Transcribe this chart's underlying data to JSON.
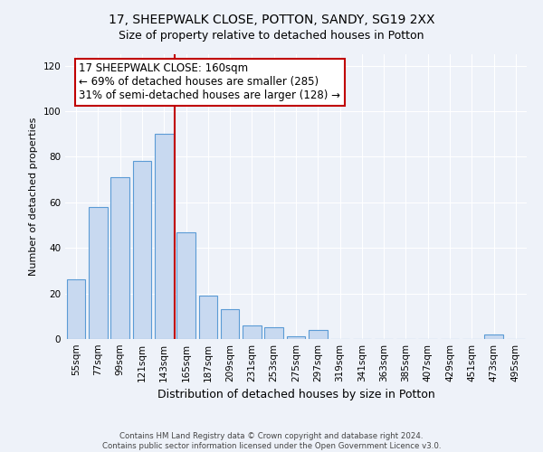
{
  "title1": "17, SHEEPWALK CLOSE, POTTON, SANDY, SG19 2XX",
  "title2": "Size of property relative to detached houses in Potton",
  "xlabel": "Distribution of detached houses by size in Potton",
  "ylabel": "Number of detached properties",
  "bar_labels": [
    "55sqm",
    "77sqm",
    "99sqm",
    "121sqm",
    "143sqm",
    "165sqm",
    "187sqm",
    "209sqm",
    "231sqm",
    "253sqm",
    "275sqm",
    "297sqm",
    "319sqm",
    "341sqm",
    "363sqm",
    "385sqm",
    "407sqm",
    "429sqm",
    "451sqm",
    "473sqm",
    "495sqm"
  ],
  "bar_values": [
    26,
    58,
    71,
    78,
    90,
    47,
    19,
    13,
    6,
    5,
    1,
    4,
    0,
    0,
    0,
    0,
    0,
    0,
    0,
    2,
    0
  ],
  "bar_color": "#c8d9f0",
  "bar_edge_color": "#5b9bd5",
  "highlight_color": "#c00000",
  "annotation_line1": "17 SHEEPWALK CLOSE: 160sqm",
  "annotation_line2": "← 69% of detached houses are smaller (285)",
  "annotation_line3": "31% of semi-detached houses are larger (128) →",
  "annotation_box_color": "#ffffff",
  "annotation_border_color": "#c00000",
  "ylim": [
    0,
    125
  ],
  "yticks": [
    0,
    20,
    40,
    60,
    80,
    100,
    120
  ],
  "footer1": "Contains HM Land Registry data © Crown copyright and database right 2024.",
  "footer2": "Contains public sector information licensed under the Open Government Licence v3.0.",
  "bg_color": "#eef2f9",
  "plot_bg_color": "#eef2f9",
  "grid_color": "#ffffff",
  "title_fontsize": 10,
  "subtitle_fontsize": 9,
  "ylabel_fontsize": 8,
  "xlabel_fontsize": 9,
  "tick_fontsize": 7.5,
  "annotation_fontsize": 8.5
}
